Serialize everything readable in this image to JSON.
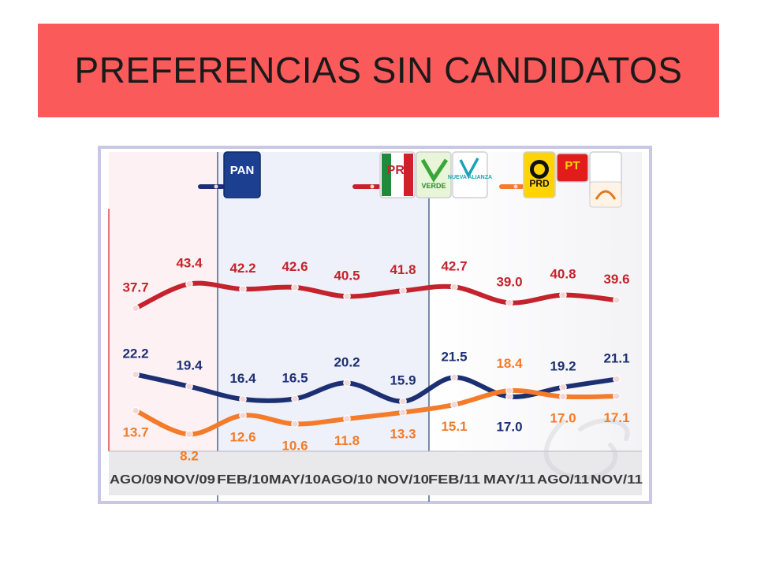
{
  "slide_title": "PREFERENCIAS SIN CANDIDATOS",
  "colors": {
    "title_background": "#fb5a5a",
    "pan": "#1d2f73",
    "pri_alliance": "#c4232d",
    "prd_alliance": "#f47b2a"
  },
  "legend": [
    {
      "key": "pan",
      "logos": [
        {
          "icon": "pan-logo-icon",
          "text": "PAN"
        }
      ]
    },
    {
      "key": "pri_alliance",
      "logos": [
        {
          "icon": "pri-logo-icon",
          "text": "PRI"
        },
        {
          "icon": "pvem-logo-icon",
          "text": "VERDE"
        },
        {
          "icon": "nueva-alianza-logo-icon",
          "text": "NUEVA ALIANZA"
        }
      ]
    },
    {
      "key": "prd_alliance",
      "logos": [
        {
          "icon": "prd-logo-icon",
          "text": "PRD"
        },
        {
          "icon": "pt-logo-icon",
          "text": "PT"
        },
        {
          "icon": "convergencia-logo-icon",
          "text": ""
        }
      ]
    }
  ],
  "chart_data": {
    "type": "line",
    "title": "PREFERENCIAS SIN CANDIDATOS",
    "categories": [
      "AGO/09",
      "NOV/09",
      "FEB/10",
      "MAY/10",
      "AGO/10",
      "NOV/10",
      "FEB/11",
      "MAY/11",
      "AGO/11",
      "NOV/11"
    ],
    "series": [
      {
        "key": "pri_alliance",
        "color": "#c4232d",
        "values": [
          37.7,
          43.4,
          42.2,
          42.6,
          40.5,
          41.8,
          42.7,
          39.0,
          40.8,
          39.6
        ]
      },
      {
        "key": "pan",
        "color": "#1d2f73",
        "values": [
          22.2,
          19.4,
          16.4,
          16.5,
          20.2,
          15.9,
          21.5,
          17.0,
          19.2,
          21.1
        ]
      },
      {
        "key": "prd_alliance",
        "color": "#f47b2a",
        "values": [
          13.7,
          8.2,
          12.6,
          10.6,
          11.8,
          13.3,
          15.1,
          18.4,
          17.0,
          17.1
        ]
      }
    ],
    "xlabel": "",
    "ylabel": "",
    "grid": false,
    "legend_position": "top"
  }
}
